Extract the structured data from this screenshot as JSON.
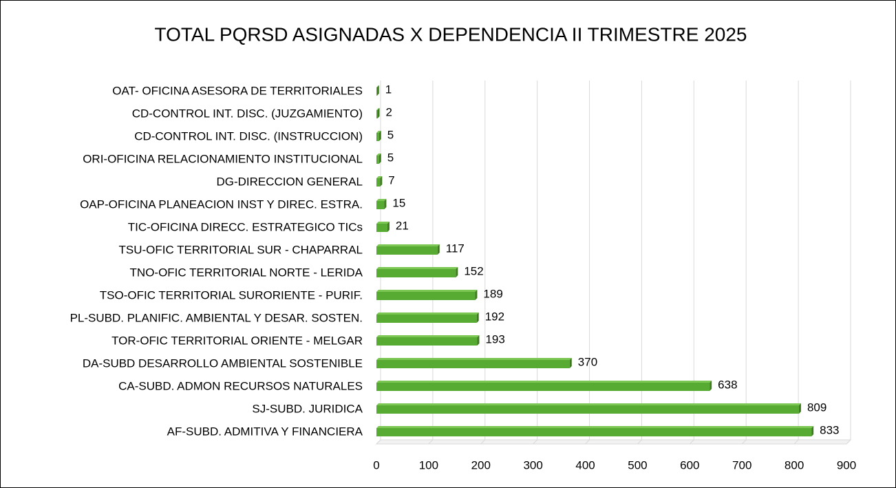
{
  "chart_data": {
    "type": "bar",
    "orientation": "horizontal",
    "title": "TOTAL PQRSD ASIGNADAS X DEPENDENCIA II TRIMESTRE 2025",
    "categories": [
      "OAT- OFICINA ASESORA DE TERRITORIALES",
      "CD-CONTROL INT. DISC. (JUZGAMIENTO)",
      "CD-CONTROL INT. DISC. (INSTRUCCION)",
      "ORI-OFICINA RELACIONAMIENTO INSTITUCIONAL",
      "DG-DIRECCION GENERAL",
      "OAP-OFICINA PLANEACION INST Y DIREC. ESTRA.",
      "TIC-OFICINA DIRECC. ESTRATEGICO TICs",
      "TSU-OFIC TERRITORIAL SUR - CHAPARRAL",
      "TNO-OFIC TERRITORIAL NORTE - LERIDA",
      "TSO-OFIC TERRITORIAL SURORIENTE - PURIF.",
      "PL-SUBD. PLANIFIC. AMBIENTAL Y DESAR. SOSTEN.",
      "TOR-OFIC TERRITORIAL ORIENTE - MELGAR",
      "DA-SUBD DESARROLLO AMBIENTAL SOSTENIBLE",
      "CA-SUBD. ADMON RECURSOS NATURALES",
      "SJ-SUBD. JURIDICA",
      "AF-SUBD. ADMITIVA Y FINANCIERA"
    ],
    "values": [
      1,
      2,
      5,
      5,
      7,
      15,
      21,
      117,
      152,
      189,
      192,
      193,
      370,
      638,
      809,
      833
    ],
    "color": "#58ab32",
    "xlim": [
      0,
      900
    ],
    "xticks": [
      0,
      100,
      200,
      300,
      400,
      500,
      600,
      700,
      800,
      900
    ],
    "grid": true
  }
}
